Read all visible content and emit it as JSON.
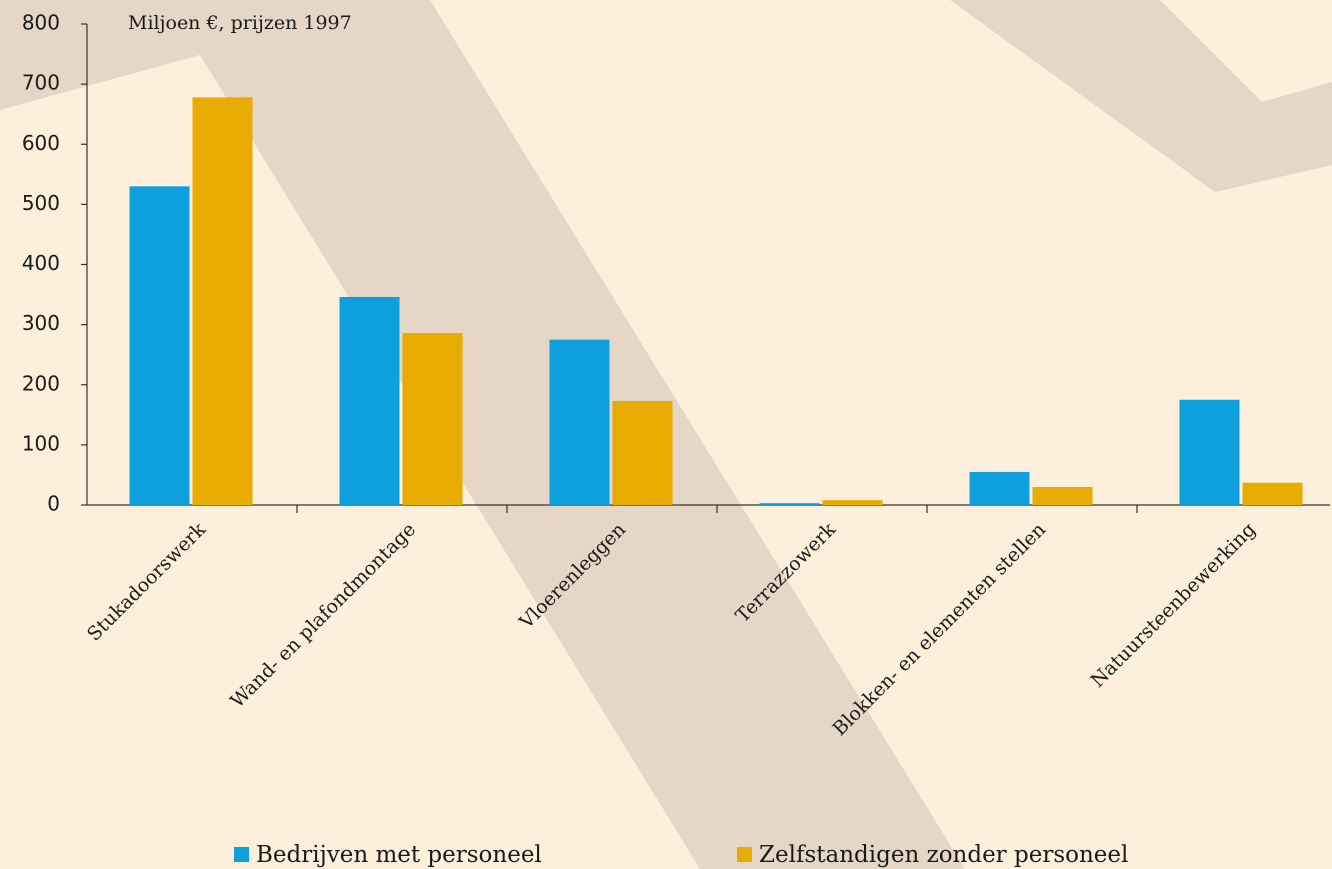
{
  "chart_data": {
    "type": "bar",
    "subtitle": "Miljoen €, prijzen 1997",
    "categories": [
      "Stukadoorswerk",
      "Wand- en plafondmontage",
      "Vloerenleggen",
      "Terrazzowerk",
      "Blokken- en elementen stellen",
      "Natuursteenbewerking"
    ],
    "series": [
      {
        "name": "Bedrijven met personeel",
        "color": "#0ea0dc",
        "values": [
          530,
          346,
          275,
          3,
          55,
          175
        ]
      },
      {
        "name": "Zelfstandigen zonder personeel",
        "color": "#e8ab00",
        "values": [
          678,
          286,
          173,
          8,
          30,
          37
        ]
      }
    ],
    "ylim": [
      0,
      800
    ],
    "yticks": [
      0,
      100,
      200,
      300,
      400,
      500,
      600,
      700,
      800
    ]
  }
}
